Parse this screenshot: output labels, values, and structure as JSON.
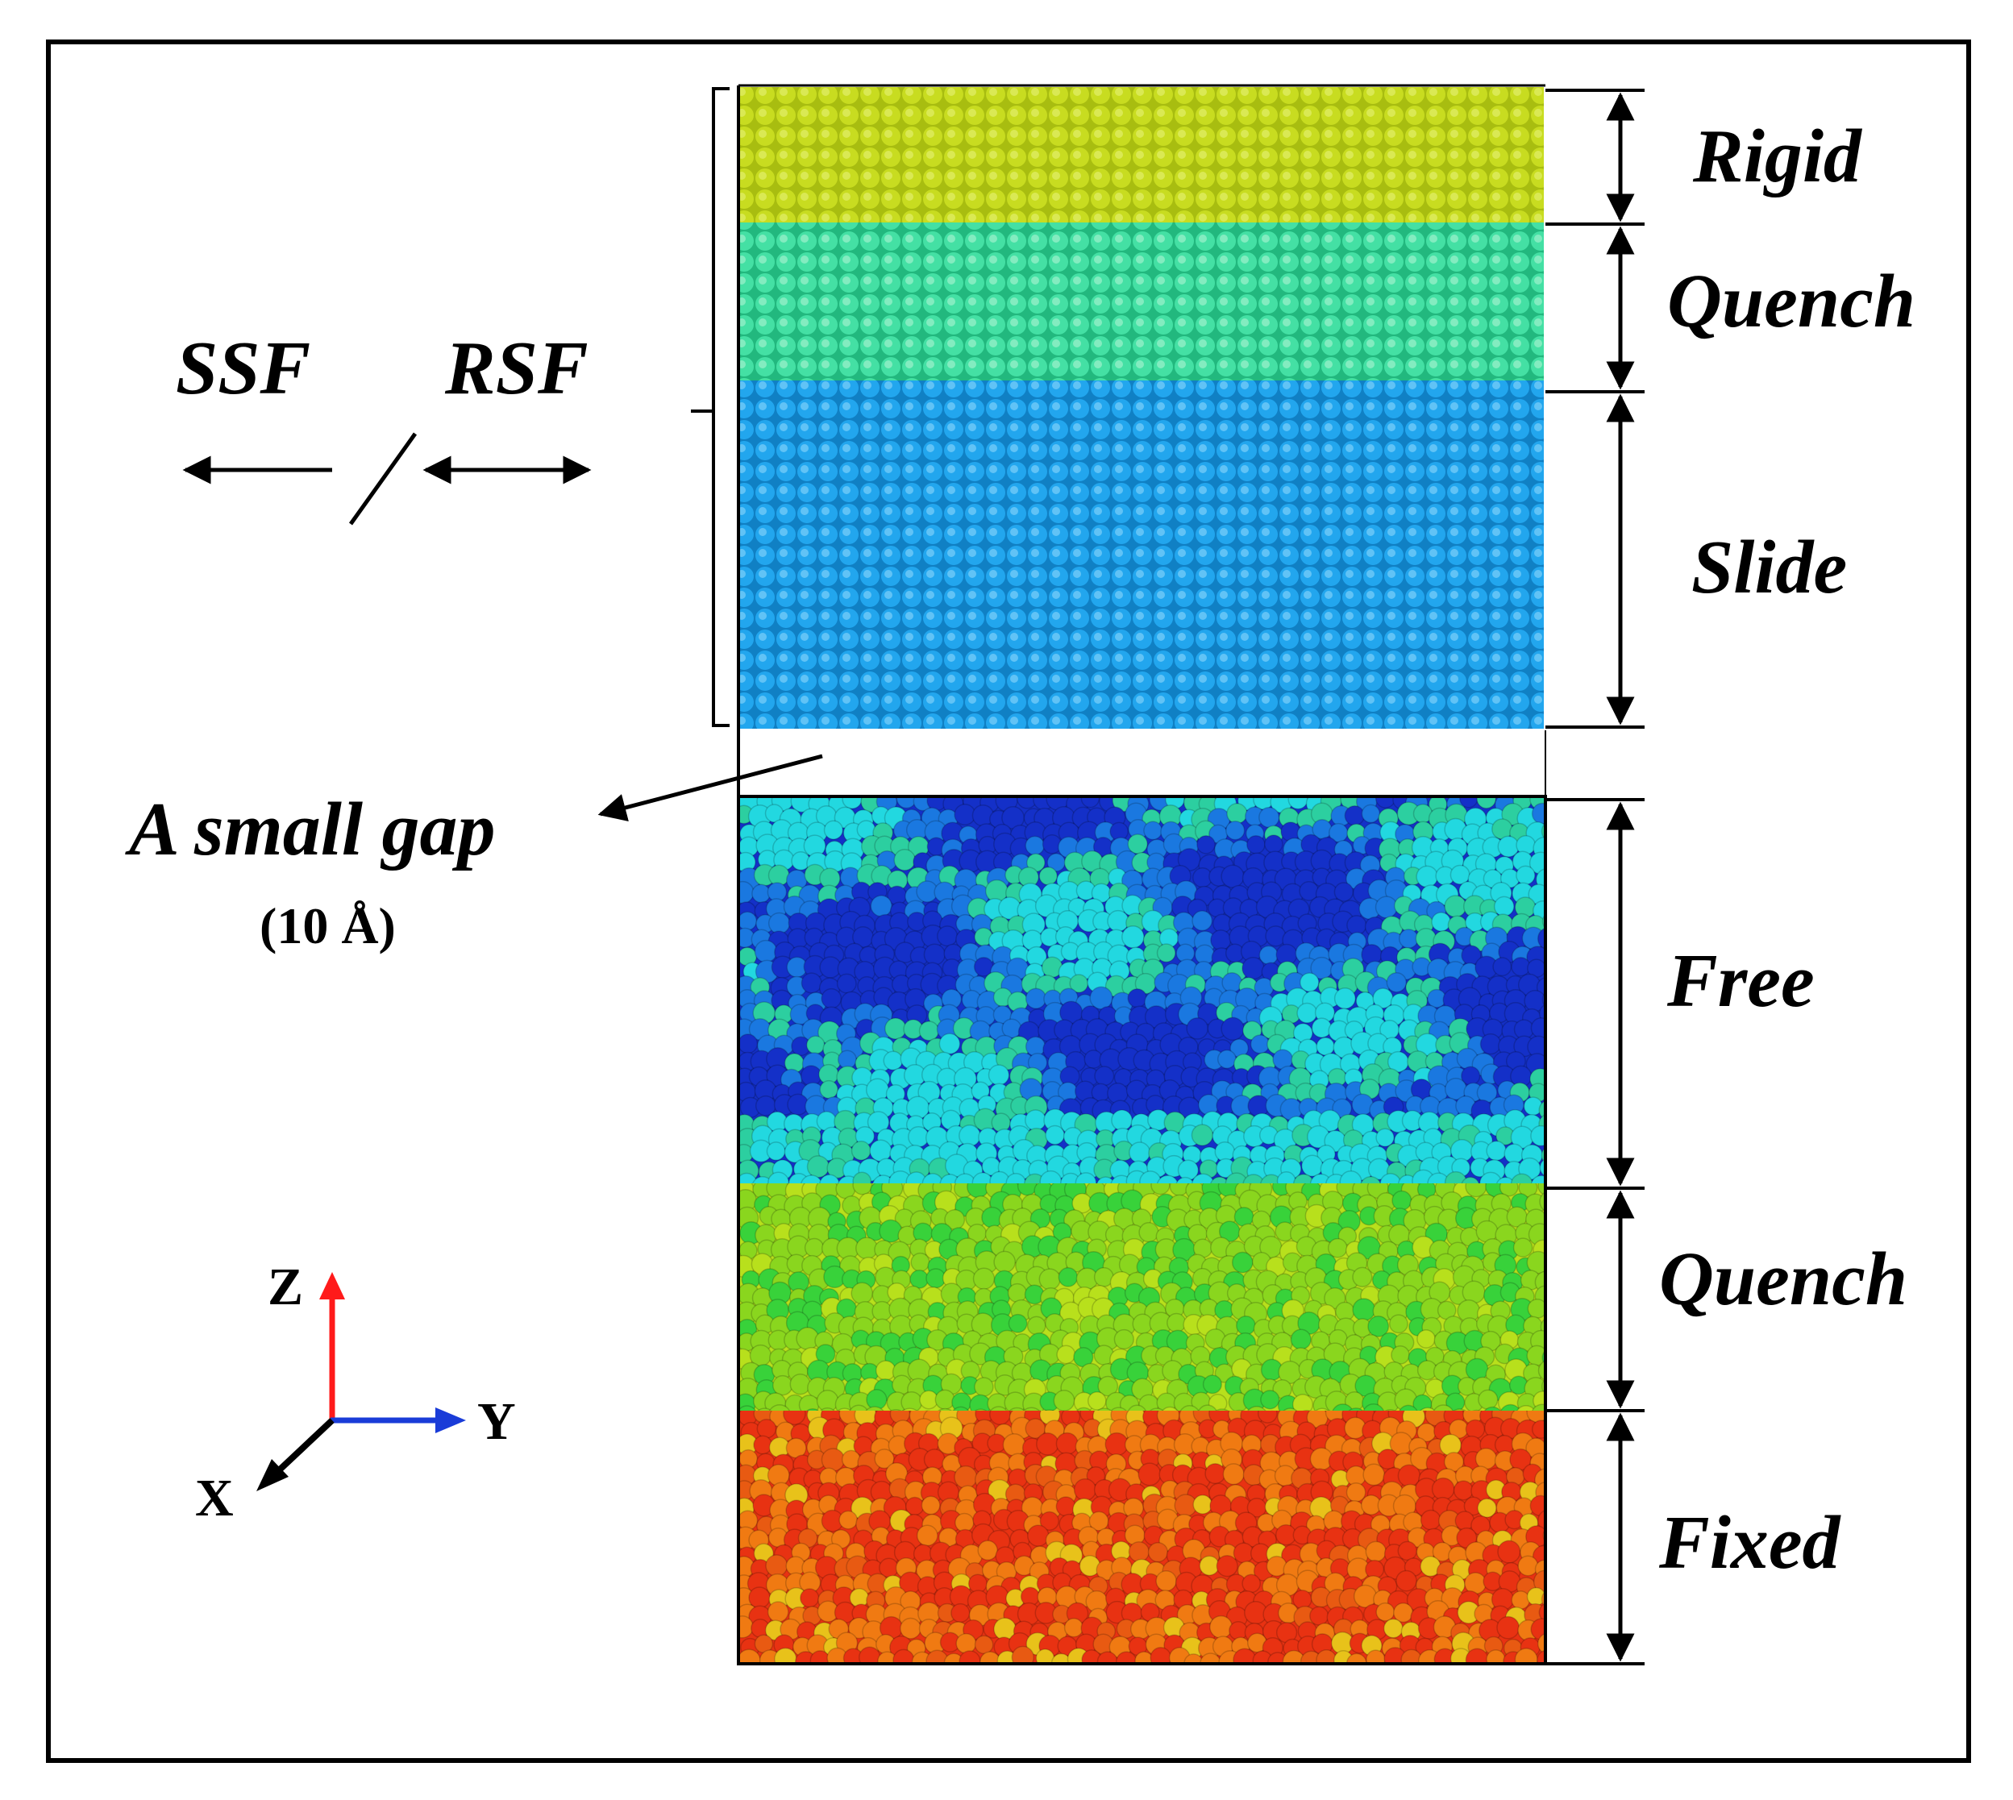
{
  "labels": {
    "rigid": "Rigid",
    "quench_top": "Quench",
    "slide": "Slide",
    "free": "Free",
    "quench_bottom": "Quench",
    "fixed": "Fixed",
    "ssf": "SSF",
    "rsf": "RSF",
    "gap": "A small gap",
    "gap_size": "(10 Å)"
  },
  "axes": {
    "z": "Z",
    "y": "Y",
    "x": "X"
  },
  "colors": {
    "rigid": "#bcd11a",
    "quench_top": "#36d89a",
    "slide": "#1c9ee6",
    "free_dark": "#1430c8",
    "free_mid": "#1a78e0",
    "free_cyan": "#22d8e0",
    "free_teal": "#2ccfa0",
    "quench_bottom": "#8ad61e",
    "quench_bottom_green": "#38d23a",
    "fixed_red": "#e83212",
    "fixed_orange": "#f07a12",
    "fixed_yellow": "#e8c21a",
    "axis_z": "#ff1a1a",
    "axis_y": "#1a3cd8",
    "axis_x": "#000000"
  }
}
